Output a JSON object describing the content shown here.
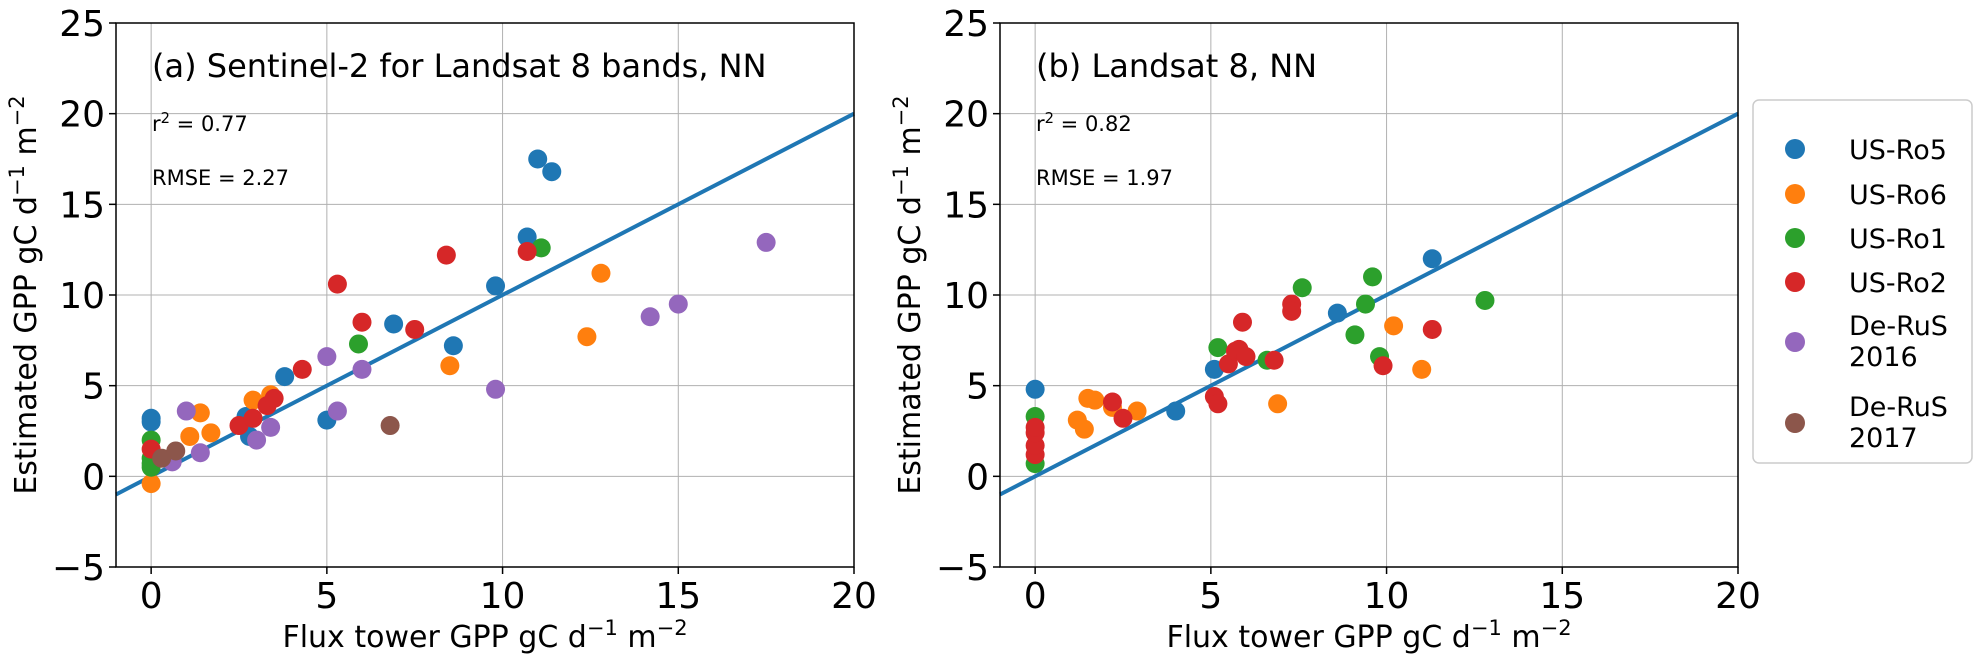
{
  "chart_data": [
    {
      "type": "scatter",
      "title": "(a) Sentinel-2 for Landsat 8 bands, NN",
      "r2": {
        "prefix": "r",
        "sup": "2",
        "suffix": " = 0.77"
      },
      "rmse": "RMSE = 2.27",
      "xlabel": {
        "main": "Flux tower GPP gC d",
        "sup1": "−1",
        "mid": " m",
        "sup2": "−2"
      },
      "ylabel": {
        "main": "Estimated GPP gC d",
        "sup1": "−1",
        "mid": " m",
        "sup2": "−2"
      },
      "xlim": [
        -1,
        20
      ],
      "ylim": [
        -5,
        25
      ],
      "xticks": [
        0,
        5,
        10,
        15,
        20
      ],
      "yticks": [
        -5,
        0,
        5,
        10,
        15,
        20,
        25
      ],
      "xtick_labels": [
        "0",
        "5",
        "10",
        "15",
        "20"
      ],
      "ytick_labels": [
        "−5",
        "0",
        "5",
        "10",
        "15",
        "20",
        "25"
      ],
      "fit_line": {
        "slope": 1,
        "intercept": 0
      },
      "grid": true,
      "series": [
        {
          "name": "US-Ro5",
          "color": "#1f77b4",
          "points": [
            [
              0,
              3.2
            ],
            [
              0,
              3.0
            ],
            [
              2.7,
              3.3
            ],
            [
              2.8,
              2.2
            ],
            [
              3.8,
              5.5
            ],
            [
              5,
              3.1
            ],
            [
              6.9,
              8.4
            ],
            [
              8.6,
              7.2
            ],
            [
              9.8,
              10.5
            ],
            [
              10.7,
              13.2
            ],
            [
              11.0,
              17.5
            ],
            [
              11.4,
              16.8
            ]
          ]
        },
        {
          "name": "US-Ro6",
          "color": "#ff7f0e",
          "points": [
            [
              0,
              -0.4
            ],
            [
              1.1,
              2.2
            ],
            [
              1.4,
              3.5
            ],
            [
              1.7,
              2.4
            ],
            [
              2.9,
              4.2
            ],
            [
              3.4,
              4.5
            ],
            [
              8.5,
              6.1
            ],
            [
              12.4,
              7.7
            ],
            [
              12.8,
              11.2
            ]
          ]
        },
        {
          "name": "US-Ro1",
          "color": "#2ca02c",
          "points": [
            [
              0,
              0.5
            ],
            [
              0,
              1.0
            ],
            [
              0,
              2.0
            ],
            [
              0,
              0.7
            ],
            [
              5.9,
              7.3
            ],
            [
              11.1,
              12.6
            ]
          ]
        },
        {
          "name": "US-Ro2",
          "color": "#d62728",
          "points": [
            [
              0,
              1.5
            ],
            [
              2.5,
              2.8
            ],
            [
              2.9,
              3.2
            ],
            [
              3.3,
              3.9
            ],
            [
              3.5,
              4.3
            ],
            [
              4.3,
              5.9
            ],
            [
              5.3,
              10.6
            ],
            [
              6,
              8.5
            ],
            [
              7.5,
              8.1
            ],
            [
              8.4,
              12.2
            ],
            [
              10.7,
              12.4
            ]
          ]
        },
        {
          "name": "De-RuS 2016",
          "color": "#9467bd",
          "points": [
            [
              0.6,
              0.8
            ],
            [
              1,
              3.6
            ],
            [
              1.4,
              1.3
            ],
            [
              3,
              2.0
            ],
            [
              3.4,
              2.7
            ],
            [
              5,
              6.6
            ],
            [
              5.3,
              3.6
            ],
            [
              6.0,
              5.9
            ],
            [
              9.8,
              4.8
            ],
            [
              14.2,
              8.8
            ],
            [
              15.0,
              9.5
            ],
            [
              17.5,
              12.9
            ]
          ]
        },
        {
          "name": "De-RuS 2017",
          "color": "#8c564b",
          "points": [
            [
              0.3,
              1.0
            ],
            [
              0.7,
              1.4
            ],
            [
              6.8,
              2.8
            ]
          ]
        }
      ]
    },
    {
      "type": "scatter",
      "title": "(b) Landsat 8, NN",
      "r2": {
        "prefix": "r",
        "sup": "2",
        "suffix": " = 0.82"
      },
      "rmse": "RMSE = 1.97",
      "xlabel": {
        "main": "Flux tower GPP gC d",
        "sup1": "−1",
        "mid": " m",
        "sup2": "−2"
      },
      "ylabel": {
        "main": "Estimated GPP gC d",
        "sup1": "−1",
        "mid": " m",
        "sup2": "−2"
      },
      "xlim": [
        -1,
        20
      ],
      "ylim": [
        -5,
        25
      ],
      "xticks": [
        0,
        5,
        10,
        15,
        20
      ],
      "yticks": [
        -5,
        0,
        5,
        10,
        15,
        20,
        25
      ],
      "xtick_labels": [
        "0",
        "5",
        "10",
        "15",
        "20"
      ],
      "ytick_labels": [
        "−5",
        "0",
        "5",
        "10",
        "15",
        "20",
        "25"
      ],
      "fit_line": {
        "slope": 1,
        "intercept": 0
      },
      "grid": true,
      "series": [
        {
          "name": "US-Ro5",
          "color": "#1f77b4",
          "points": [
            [
              0,
              4.8
            ],
            [
              4,
              3.6
            ],
            [
              5.1,
              5.9
            ],
            [
              8.6,
              9.0
            ],
            [
              11.3,
              12.0
            ]
          ]
        },
        {
          "name": "US-Ro6",
          "color": "#ff7f0e",
          "points": [
            [
              1.2,
              3.1
            ],
            [
              1.4,
              2.6
            ],
            [
              1.5,
              4.3
            ],
            [
              1.7,
              4.2
            ],
            [
              2.2,
              3.8
            ],
            [
              2.9,
              3.6
            ],
            [
              6.9,
              4.0
            ],
            [
              10.2,
              8.3
            ],
            [
              11.0,
              5.9
            ]
          ]
        },
        {
          "name": "US-Ro1",
          "color": "#2ca02c",
          "points": [
            [
              0,
              0.7
            ],
            [
              0,
              3.3
            ],
            [
              5.2,
              7.1
            ],
            [
              6.6,
              6.4
            ],
            [
              7.6,
              10.4
            ],
            [
              9.1,
              7.8
            ],
            [
              9.4,
              9.5
            ],
            [
              9.6,
              11.0
            ],
            [
              9.8,
              6.6
            ],
            [
              12.8,
              9.7
            ]
          ]
        },
        {
          "name": "US-Ro2",
          "color": "#d62728",
          "points": [
            [
              0,
              1.2
            ],
            [
              0,
              1.7
            ],
            [
              0,
              2.4
            ],
            [
              0,
              2.7
            ],
            [
              2.2,
              4.1
            ],
            [
              2.5,
              3.2
            ],
            [
              5.1,
              4.4
            ],
            [
              5.2,
              4.0
            ],
            [
              5.5,
              6.2
            ],
            [
              5.7,
              6.9
            ],
            [
              5.8,
              7.0
            ],
            [
              5.9,
              8.5
            ],
            [
              6.0,
              6.6
            ],
            [
              6.8,
              6.4
            ],
            [
              7.3,
              9.5
            ],
            [
              7.3,
              9.1
            ],
            [
              9.9,
              6.1
            ],
            [
              11.3,
              8.1
            ]
          ]
        }
      ]
    }
  ],
  "legend": {
    "placement": "right",
    "items": [
      {
        "lines": [
          "US-Ro5"
        ],
        "color": "#1f77b4"
      },
      {
        "lines": [
          "US-Ro6"
        ],
        "color": "#ff7f0e"
      },
      {
        "lines": [
          "US-Ro1"
        ],
        "color": "#2ca02c"
      },
      {
        "lines": [
          "US-Ro2"
        ],
        "color": "#d62728"
      },
      {
        "lines": [
          "De-RuS",
          "2016"
        ],
        "color": "#9467bd"
      },
      {
        "lines": [
          "De-RuS",
          "2017"
        ],
        "color": "#8c564b"
      }
    ]
  }
}
